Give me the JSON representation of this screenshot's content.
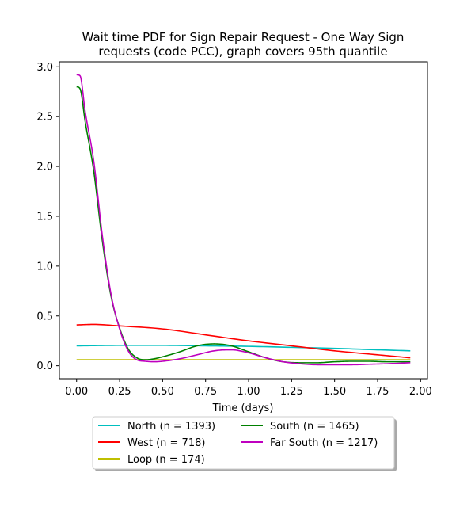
{
  "chart_data": {
    "type": "line",
    "title": [
      "Wait time PDF for Sign Repair Request - One Way Sign",
      "requests (code PCC), graph covers 95th quantile"
    ],
    "xlabel": "Time (days)",
    "ylabel": "",
    "xlim": [
      -0.1,
      2.04
    ],
    "ylim": [
      -0.13,
      3.05
    ],
    "xticks": [
      "0.00",
      "0.25",
      "0.50",
      "0.75",
      "1.00",
      "1.25",
      "1.50",
      "1.75",
      "2.00"
    ],
    "yticks": [
      "0.0",
      "0.5",
      "1.0",
      "1.5",
      "2.0",
      "2.5",
      "3.0"
    ],
    "grid": false,
    "legend_position": "below-center",
    "series": [
      {
        "name": "North (n = 1393)",
        "color": "#00bfbf",
        "x": [
          0,
          0.25,
          0.5,
          0.75,
          1.0,
          1.25,
          1.5,
          1.75,
          1.94
        ],
        "y": [
          0.2,
          0.205,
          0.205,
          0.2,
          0.195,
          0.185,
          0.175,
          0.16,
          0.15
        ]
      },
      {
        "name": "West (n = 718)",
        "color": "#ff0000",
        "x": [
          0,
          0.1,
          0.25,
          0.5,
          0.75,
          1.0,
          1.25,
          1.5,
          1.75,
          1.94
        ],
        "y": [
          0.41,
          0.415,
          0.4,
          0.37,
          0.31,
          0.25,
          0.2,
          0.15,
          0.11,
          0.08
        ]
      },
      {
        "name": "Loop (n = 174)",
        "color": "#bfbf00",
        "x": [
          0,
          0.5,
          1.0,
          1.5,
          1.94
        ],
        "y": [
          0.06,
          0.06,
          0.06,
          0.06,
          0.06
        ]
      },
      {
        "name": "South (n = 1465)",
        "color": "#008000",
        "x": [
          0,
          0.02,
          0.05,
          0.1,
          0.15,
          0.2,
          0.25,
          0.3,
          0.35,
          0.4,
          0.45,
          0.5,
          0.6,
          0.7,
          0.8,
          0.9,
          1.0,
          1.1,
          1.2,
          1.3,
          1.4,
          1.5,
          1.6,
          1.7,
          1.8,
          1.94
        ],
        "y": [
          2.8,
          2.78,
          2.45,
          1.95,
          1.25,
          0.7,
          0.38,
          0.17,
          0.08,
          0.06,
          0.07,
          0.09,
          0.14,
          0.2,
          0.22,
          0.2,
          0.14,
          0.08,
          0.04,
          0.03,
          0.03,
          0.04,
          0.045,
          0.045,
          0.04,
          0.04
        ]
      },
      {
        "name": "Far South (n = 1217)",
        "color": "#bf00bf",
        "x": [
          0,
          0.02,
          0.05,
          0.1,
          0.15,
          0.2,
          0.25,
          0.3,
          0.35,
          0.4,
          0.45,
          0.5,
          0.6,
          0.7,
          0.8,
          0.9,
          1.0,
          1.1,
          1.2,
          1.3,
          1.4,
          1.5,
          1.6,
          1.7,
          1.8,
          1.94
        ],
        "y": [
          2.92,
          2.91,
          2.55,
          2.05,
          1.3,
          0.72,
          0.37,
          0.15,
          0.06,
          0.045,
          0.04,
          0.045,
          0.07,
          0.11,
          0.15,
          0.16,
          0.13,
          0.08,
          0.04,
          0.02,
          0.01,
          0.01,
          0.01,
          0.015,
          0.02,
          0.03
        ]
      }
    ]
  }
}
